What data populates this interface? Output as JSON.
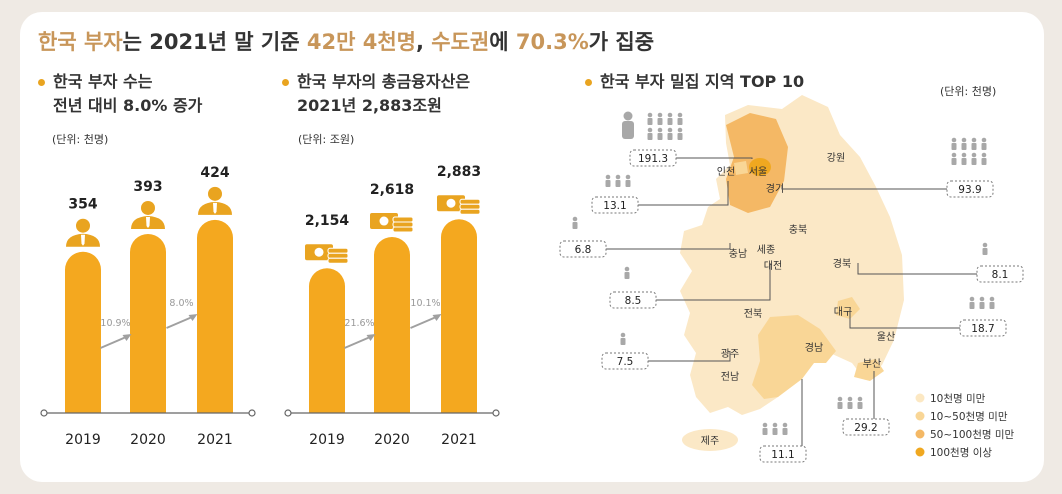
{
  "headline": {
    "p1": "한국 부자",
    "p2": "는 2021년 말 기준 ",
    "p3": "42만 4천명",
    "p4": ", ",
    "p5": "수도권",
    "p6": "에 ",
    "p7": "70.3%",
    "p8": "가 집중"
  },
  "section1": {
    "line1": "한국 부자 수는",
    "line2": "전년 대비 8.0% 증가",
    "unit": "(단위: 천명)"
  },
  "section2": {
    "line1": "한국 부자의 총금융자산은",
    "line2": "2021년 2,883조원",
    "unit": "(단위: 조원)"
  },
  "section3": {
    "title": "한국 부자 밀집 지역 TOP 10",
    "unit": "(단위: 천명)"
  },
  "colors": {
    "bar": "#f4a81f",
    "dark_gold": "#e9a420",
    "arrow": "#a0a0a0",
    "legend": [
      "#fce8c3",
      "#f9d696",
      "#f4b865",
      "#f0a820"
    ]
  },
  "chart_data": [
    {
      "type": "bar",
      "categories": [
        "2019",
        "2020",
        "2021"
      ],
      "values": [
        354,
        393,
        424
      ],
      "value_labels": [
        "354",
        "393",
        "424"
      ],
      "growth": [
        "10.9%",
        "8.0%"
      ],
      "ylim": [
        0,
        450
      ],
      "icon": "person-icon"
    },
    {
      "type": "bar",
      "categories": [
        "2019",
        "2020",
        "2021"
      ],
      "values": [
        2154,
        2618,
        2883
      ],
      "value_labels": [
        "2,154",
        "2,618",
        "2,883"
      ],
      "growth": [
        "21.6%",
        "10.1%"
      ],
      "ylim": [
        0,
        3050
      ],
      "icon": "money-icon"
    }
  ],
  "map": {
    "regions": [
      "강원",
      "인천",
      "서울",
      "경기",
      "충북",
      "충남",
      "세종",
      "대전",
      "경북",
      "전북",
      "대구",
      "울산",
      "경남",
      "부산",
      "광주",
      "전남",
      "제주"
    ],
    "callouts": [
      {
        "region": "서울",
        "value": "191.3"
      },
      {
        "region": "경기",
        "value": "93.9"
      },
      {
        "region": "인천",
        "value": "13.1"
      },
      {
        "region": "충남",
        "value": "6.8"
      },
      {
        "region": "경북",
        "value": "8.1"
      },
      {
        "region": "대전",
        "value": "8.5"
      },
      {
        "region": "대구",
        "value": "18.7"
      },
      {
        "region": "광주",
        "value": "7.5"
      },
      {
        "region": "부산",
        "value": "29.2"
      },
      {
        "region": "경남",
        "value": "11.1"
      }
    ],
    "legend": [
      "10천명 미만",
      "10~50천명 미만",
      "50~100천명 미만",
      "100천명 이상"
    ]
  }
}
